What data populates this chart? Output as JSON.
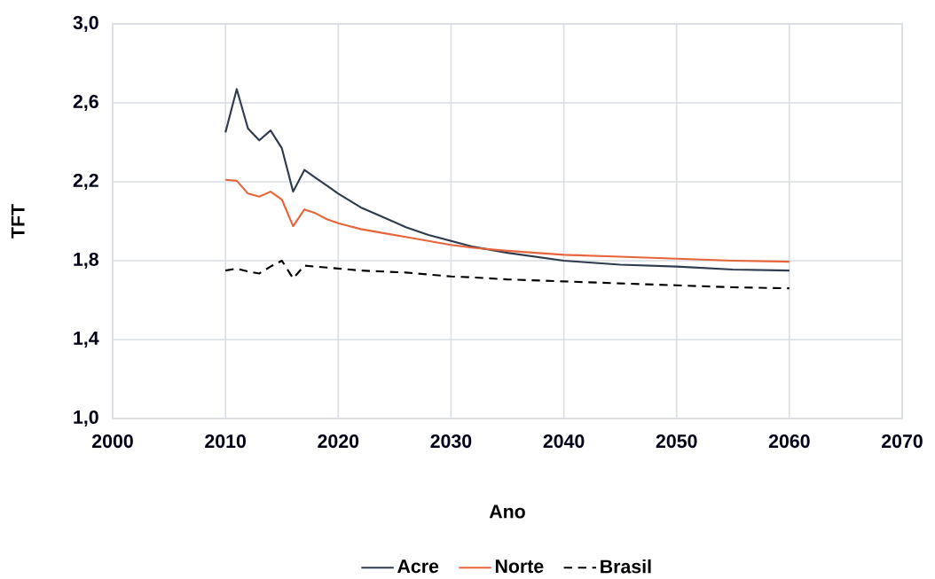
{
  "chart_data": {
    "type": "line",
    "xlabel": "Ano",
    "ylabel": "TFT",
    "x": [
      2010,
      2011,
      2012,
      2013,
      2014,
      2015,
      2016,
      2017,
      2018,
      2019,
      2020,
      2022,
      2024,
      2026,
      2028,
      2030,
      2032,
      2035,
      2040,
      2045,
      2050,
      2055,
      2060
    ],
    "series": [
      {
        "name": "Acre",
        "color": "#2e3b4e",
        "values": [
          2.45,
          2.67,
          2.47,
          2.41,
          2.46,
          2.37,
          2.15,
          2.26,
          2.22,
          2.18,
          2.14,
          2.07,
          2.02,
          1.97,
          1.93,
          1.9,
          1.87,
          1.84,
          1.8,
          1.78,
          1.77,
          1.755,
          1.75
        ]
      },
      {
        "name": "Norte",
        "color": "#e8643a",
        "values": [
          2.21,
          2.205,
          2.14,
          2.125,
          2.15,
          2.11,
          1.975,
          2.06,
          2.04,
          2.01,
          1.99,
          1.96,
          1.94,
          1.92,
          1.9,
          1.88,
          1.865,
          1.85,
          1.83,
          1.82,
          1.81,
          1.8,
          1.795
        ]
      },
      {
        "name": "Brasil",
        "color": "#000000",
        "line_style": "dashed",
        "values": [
          1.75,
          1.76,
          1.745,
          1.735,
          1.77,
          1.8,
          1.71,
          1.775,
          1.77,
          1.765,
          1.76,
          1.75,
          1.745,
          1.74,
          1.73,
          1.72,
          1.715,
          1.705,
          1.695,
          1.685,
          1.675,
          1.665,
          1.66
        ]
      }
    ],
    "xlim": [
      2000,
      2070
    ],
    "xticks": [
      2000,
      2010,
      2020,
      2030,
      2040,
      2050,
      2060,
      2070
    ],
    "ylim": [
      1.0,
      3.0
    ],
    "yticks": [
      {
        "value": 1.0,
        "label": "1,0"
      },
      {
        "value": 1.4,
        "label": "1,4"
      },
      {
        "value": 1.8,
        "label": "1,8"
      },
      {
        "value": 2.2,
        "label": "2,2"
      },
      {
        "value": 2.6,
        "label": "2,6"
      },
      {
        "value": 3.0,
        "label": "3,0"
      }
    ],
    "grid": true,
    "legend": "bottom"
  }
}
